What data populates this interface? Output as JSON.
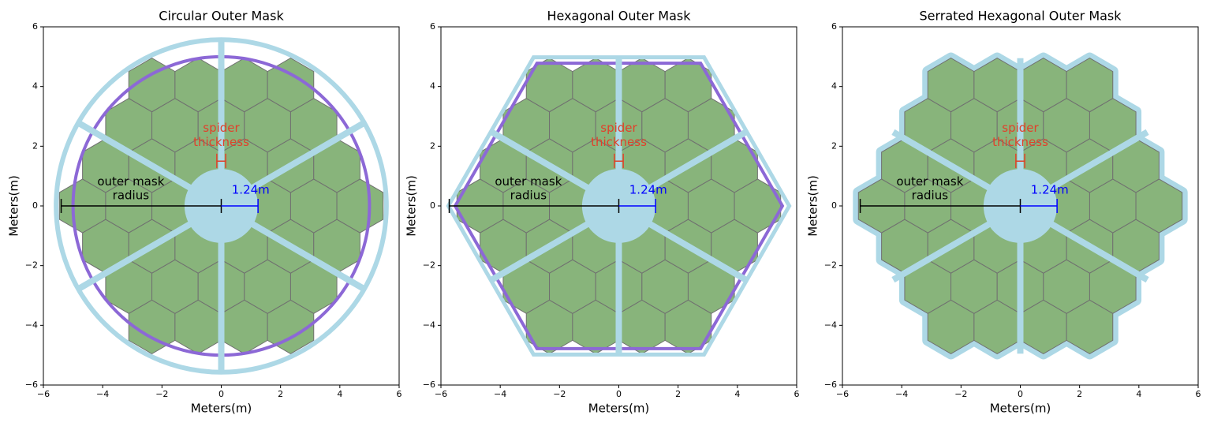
{
  "chart_data": [
    {
      "type": "diagram",
      "title": "Circular Outer Mask",
      "xlabel": "Meters(m)",
      "ylabel": "Meters(m)",
      "xlim": [
        -6,
        6
      ],
      "ylim": [
        -6,
        6
      ],
      "xticks": [
        {
          "value": -6,
          "label": "−6"
        },
        {
          "value": -4,
          "label": "−4"
        },
        {
          "value": -2,
          "label": "−2"
        },
        0,
        2,
        4,
        6
      ],
      "yticks": [
        {
          "value": -6,
          "label": "−6"
        },
        {
          "value": -4,
          "label": "−4"
        },
        {
          "value": -2,
          "label": "−2"
        },
        0,
        2,
        4,
        6
      ],
      "spider_label": [
        "spider",
        "thickness"
      ],
      "radius_label": [
        "outer mask",
        "radius"
      ],
      "inner_radius": {
        "value": 1.24,
        "label": "1.24m"
      }
    },
    {
      "type": "diagram",
      "title": "Hexagonal Outer Mask",
      "xlabel": "Meters(m)",
      "ylabel": "Meters(m)",
      "xlim": [
        -6,
        6
      ],
      "ylim": [
        -6,
        6
      ],
      "xticks": [
        {
          "value": -6,
          "label": "−6"
        },
        {
          "value": -4,
          "label": "−4"
        },
        {
          "value": -2,
          "label": "−2"
        },
        0,
        2,
        4,
        6
      ],
      "yticks": [
        {
          "value": -6,
          "label": "−6"
        },
        {
          "value": -4,
          "label": "−4"
        },
        {
          "value": -2,
          "label": "−2"
        },
        0,
        2,
        4,
        6
      ],
      "spider_label": [
        "spider",
        "thickness"
      ],
      "radius_label": [
        "outer mask",
        "radius"
      ],
      "inner_radius": {
        "value": 1.24,
        "label": "1.24m"
      }
    },
    {
      "type": "diagram",
      "title": "Serrated Hexagonal Outer Mask",
      "xlabel": "Meters(m)",
      "ylabel": "Meters(m)",
      "xlim": [
        -6,
        6
      ],
      "ylim": [
        -6,
        6
      ],
      "xticks": [
        {
          "value": -6,
          "label": "−6"
        },
        {
          "value": -4,
          "label": "−4"
        },
        {
          "value": -2,
          "label": "−2"
        },
        0,
        2,
        4,
        6
      ],
      "yticks": [
        {
          "value": -6,
          "label": "−6"
        },
        {
          "value": -4,
          "label": "−4"
        },
        {
          "value": -2,
          "label": "−2"
        },
        0,
        2,
        4,
        6
      ],
      "spider_label": [
        "spider",
        "thickness"
      ],
      "radius_label": [
        "outer mask",
        "radius"
      ],
      "inner_radius": {
        "value": 1.24,
        "label": "1.24m"
      }
    }
  ]
}
